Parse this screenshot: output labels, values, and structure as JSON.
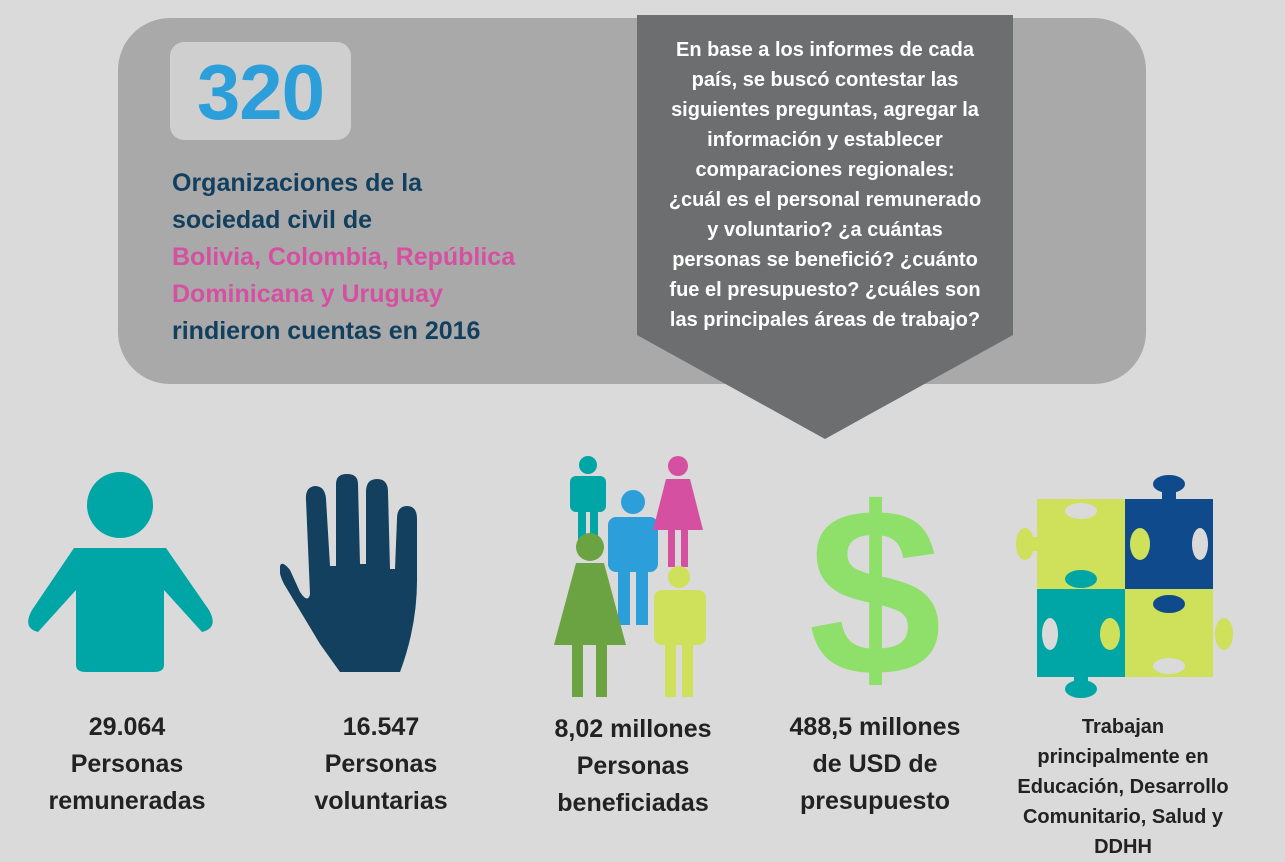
{
  "header": {
    "count": "320",
    "intro_line1": "Organizaciones de la",
    "intro_line2": "sociedad civil de",
    "countries_line1": "Bolivia, Colombia, República",
    "countries_line2": "Dominicana y Uruguay",
    "intro_line3": "rindieron cuentas en 2016"
  },
  "callout": {
    "lines": [
      "En base a los informes de cada",
      "país, se buscó contestar las",
      "siguientes preguntas, agregar la",
      "información y establecer",
      "comparaciones regionales:",
      "¿cuál es el personal remunerado",
      "y voluntario? ¿a cuántas",
      "personas se benefició? ¿cuánto",
      "fue el presupuesto? ¿cuáles son",
      "las principales áreas de trabajo?"
    ]
  },
  "stats": [
    {
      "icon": "person-icon",
      "lines": [
        "29.064",
        "Personas",
        "remuneradas"
      ]
    },
    {
      "icon": "hand-icon",
      "lines": [
        "16.547",
        "Personas",
        "voluntarias"
      ]
    },
    {
      "icon": "people-group-icon",
      "lines": [
        "8,02 millones",
        "Personas",
        "beneficiadas"
      ]
    },
    {
      "icon": "dollar-icon",
      "lines": [
        "488,5 millones",
        "de USD de",
        "presupuesto"
      ]
    },
    {
      "icon": "puzzle-icon",
      "lines": [
        "Trabajan",
        "principalmente en",
        "Educación, Desarrollo",
        "Comunitario, Salud y",
        "DDHH"
      ]
    }
  ],
  "colors": {
    "blue": "#2c9fdb",
    "navy": "#123f5e",
    "pink": "#d650a2",
    "teal": "#00a5a5",
    "green": "#8ee06a",
    "lime": "#cfe05a",
    "olive": "#6ba342",
    "darkblue": "#0e4a8c",
    "callout": "#6d6e70"
  }
}
